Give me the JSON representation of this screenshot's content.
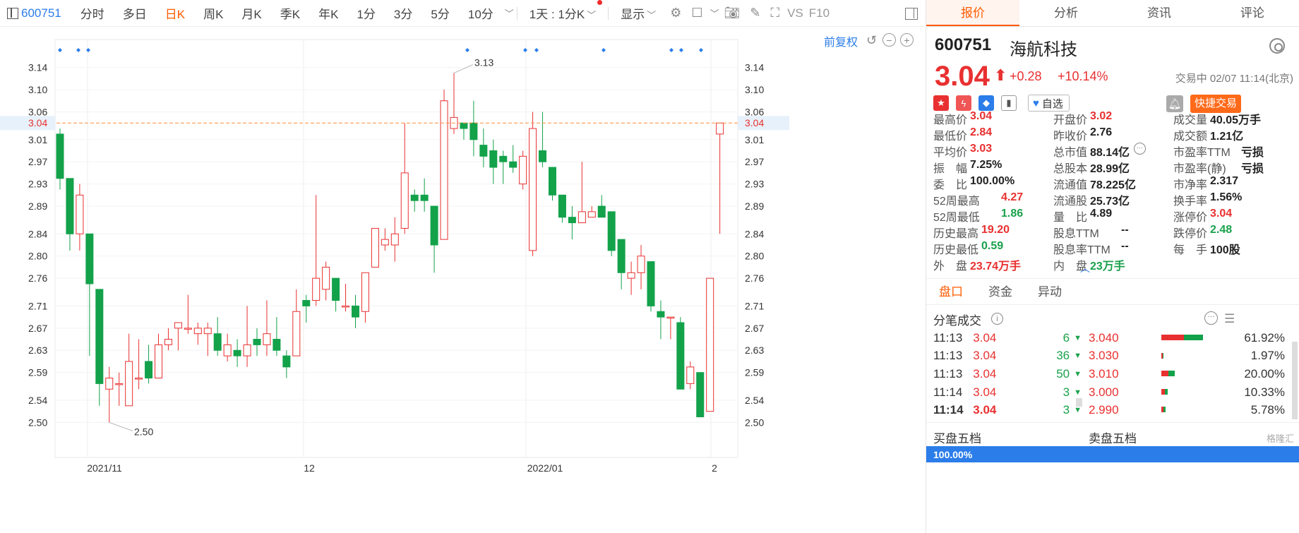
{
  "toolbar": {
    "code": "600751",
    "tabs": [
      "分时",
      "多日",
      "日K",
      "周K",
      "月K",
      "季K",
      "年K",
      "1分",
      "3分",
      "5分",
      "10分"
    ],
    "active": "日K",
    "range": "1天 : 1分K",
    "display": "显示",
    "vs": "VS",
    "f10": "F10"
  },
  "chart": {
    "restore_label": "前复权",
    "current_price_label": "3.04",
    "high_annotation": "3.13",
    "low_annotation": "2.50"
  },
  "chart_data": {
    "type": "candlestick",
    "y_ticks": [
      3.14,
      3.1,
      3.06,
      3.01,
      2.97,
      2.93,
      2.89,
      2.84,
      2.8,
      2.76,
      2.71,
      2.67,
      2.63,
      2.59,
      2.54,
      2.5
    ],
    "x_labels": [
      "2021/11",
      "12",
      "2022/01",
      "2"
    ],
    "current_price": 3.04,
    "candles": [
      {
        "o": 3.02,
        "h": 3.03,
        "l": 2.92,
        "c": 2.94
      },
      {
        "o": 2.94,
        "h": 2.94,
        "l": 2.81,
        "c": 2.84
      },
      {
        "o": 2.84,
        "h": 2.93,
        "l": 2.81,
        "c": 2.91
      },
      {
        "o": 2.84,
        "h": 2.84,
        "l": 2.62,
        "c": 2.75
      },
      {
        "o": 2.74,
        "h": 2.74,
        "l": 2.53,
        "c": 2.57
      },
      {
        "o": 2.56,
        "h": 2.6,
        "l": 2.5,
        "c": 2.58
      },
      {
        "o": 2.57,
        "h": 2.59,
        "l": 2.53,
        "c": 2.57
      },
      {
        "o": 2.53,
        "h": 2.66,
        "l": 2.53,
        "c": 2.61
      },
      {
        "o": 2.58,
        "h": 2.65,
        "l": 2.56,
        "c": 2.58
      },
      {
        "o": 2.61,
        "h": 2.64,
        "l": 2.57,
        "c": 2.58
      },
      {
        "o": 2.58,
        "h": 2.66,
        "l": 2.58,
        "c": 2.64
      },
      {
        "o": 2.64,
        "h": 2.67,
        "l": 2.63,
        "c": 2.65
      },
      {
        "o": 2.67,
        "h": 2.68,
        "l": 2.63,
        "c": 2.68
      },
      {
        "o": 2.67,
        "h": 2.73,
        "l": 2.66,
        "c": 2.67
      },
      {
        "o": 2.66,
        "h": 2.68,
        "l": 2.64,
        "c": 2.67
      },
      {
        "o": 2.66,
        "h": 2.68,
        "l": 2.62,
        "c": 2.67
      },
      {
        "o": 2.66,
        "h": 2.69,
        "l": 2.62,
        "c": 2.63
      },
      {
        "o": 2.62,
        "h": 2.66,
        "l": 2.61,
        "c": 2.64
      },
      {
        "o": 2.63,
        "h": 2.65,
        "l": 2.6,
        "c": 2.62
      },
      {
        "o": 2.62,
        "h": 2.71,
        "l": 2.6,
        "c": 2.64
      },
      {
        "o": 2.65,
        "h": 2.67,
        "l": 2.62,
        "c": 2.64
      },
      {
        "o": 2.64,
        "h": 2.72,
        "l": 2.62,
        "c": 2.66
      },
      {
        "o": 2.65,
        "h": 2.69,
        "l": 2.62,
        "c": 2.63
      },
      {
        "o": 2.62,
        "h": 2.63,
        "l": 2.58,
        "c": 2.6
      },
      {
        "o": 2.62,
        "h": 2.74,
        "l": 2.62,
        "c": 2.7
      },
      {
        "o": 2.72,
        "h": 2.73,
        "l": 2.68,
        "c": 2.71
      },
      {
        "o": 2.72,
        "h": 2.91,
        "l": 2.71,
        "c": 2.76
      },
      {
        "o": 2.74,
        "h": 2.79,
        "l": 2.72,
        "c": 2.78
      },
      {
        "o": 2.76,
        "h": 2.76,
        "l": 2.7,
        "c": 2.72
      },
      {
        "o": 2.71,
        "h": 2.75,
        "l": 2.7,
        "c": 2.71
      },
      {
        "o": 2.71,
        "h": 2.73,
        "l": 2.67,
        "c": 2.69
      },
      {
        "o": 2.7,
        "h": 2.77,
        "l": 2.68,
        "c": 2.77
      },
      {
        "o": 2.78,
        "h": 2.85,
        "l": 2.78,
        "c": 2.85
      },
      {
        "o": 2.82,
        "h": 2.85,
        "l": 2.81,
        "c": 2.83
      },
      {
        "o": 2.82,
        "h": 2.87,
        "l": 2.79,
        "c": 2.84
      },
      {
        "o": 2.85,
        "h": 3.04,
        "l": 2.84,
        "c": 2.95
      },
      {
        "o": 2.91,
        "h": 2.92,
        "l": 2.88,
        "c": 2.9
      },
      {
        "o": 2.91,
        "h": 2.94,
        "l": 2.88,
        "c": 2.9
      },
      {
        "o": 2.89,
        "h": 2.89,
        "l": 2.77,
        "c": 2.82
      },
      {
        "o": 2.83,
        "h": 3.1,
        "l": 2.83,
        "c": 3.08
      },
      {
        "o": 3.03,
        "h": 3.13,
        "l": 3.02,
        "c": 3.05
      },
      {
        "o": 3.04,
        "h": 3.04,
        "l": 3.01,
        "c": 3.03
      },
      {
        "o": 3.04,
        "h": 3.08,
        "l": 2.98,
        "c": 3.01
      },
      {
        "o": 3.0,
        "h": 3.03,
        "l": 2.96,
        "c": 2.98
      },
      {
        "o": 2.99,
        "h": 3.01,
        "l": 2.93,
        "c": 2.96
      },
      {
        "o": 2.98,
        "h": 2.99,
        "l": 2.93,
        "c": 2.97
      },
      {
        "o": 2.97,
        "h": 3.0,
        "l": 2.95,
        "c": 2.96
      },
      {
        "o": 2.93,
        "h": 2.99,
        "l": 2.92,
        "c": 2.98
      },
      {
        "o": 2.81,
        "h": 3.06,
        "l": 2.8,
        "c": 3.03
      },
      {
        "o": 2.99,
        "h": 3.06,
        "l": 2.96,
        "c": 2.97
      },
      {
        "o": 2.96,
        "h": 2.96,
        "l": 2.9,
        "c": 2.91
      },
      {
        "o": 2.91,
        "h": 2.91,
        "l": 2.86,
        "c": 2.87
      },
      {
        "o": 2.87,
        "h": 2.89,
        "l": 2.83,
        "c": 2.86
      },
      {
        "o": 2.86,
        "h": 2.97,
        "l": 2.86,
        "c": 2.88
      },
      {
        "o": 2.87,
        "h": 2.89,
        "l": 2.87,
        "c": 2.88
      },
      {
        "o": 2.89,
        "h": 2.91,
        "l": 2.87,
        "c": 2.87
      },
      {
        "o": 2.88,
        "h": 2.88,
        "l": 2.8,
        "c": 2.81
      },
      {
        "o": 2.83,
        "h": 2.83,
        "l": 2.74,
        "c": 2.77
      },
      {
        "o": 2.76,
        "h": 2.79,
        "l": 2.73,
        "c": 2.77
      },
      {
        "o": 2.77,
        "h": 2.82,
        "l": 2.74,
        "c": 2.8
      },
      {
        "o": 2.79,
        "h": 2.79,
        "l": 2.7,
        "c": 2.71
      },
      {
        "o": 2.7,
        "h": 2.72,
        "l": 2.65,
        "c": 2.69
      },
      {
        "o": 2.69,
        "h": 2.69,
        "l": 2.65,
        "c": 2.69
      },
      {
        "o": 2.68,
        "h": 2.69,
        "l": 2.56,
        "c": 2.56
      },
      {
        "o": 2.57,
        "h": 2.61,
        "l": 2.56,
        "c": 2.6
      },
      {
        "o": 2.59,
        "h": 2.59,
        "l": 2.51,
        "c": 2.51
      },
      {
        "o": 2.52,
        "h": 2.76,
        "l": 2.52,
        "c": 2.76
      },
      {
        "o": 3.02,
        "h": 3.04,
        "l": 2.84,
        "c": 3.04
      }
    ]
  },
  "panel": {
    "tabs": [
      "报价",
      "分析",
      "资讯",
      "评论"
    ],
    "active": "报价",
    "code": "600751",
    "name": "海航科技",
    "price": "3.04",
    "change": "+0.28",
    "change_pct": "+10.14%",
    "status": "交易中 02/07 11:14(北京)",
    "watch_label": "自选",
    "quick_trade": "快捷交易",
    "quotes": [
      [
        {
          "k": "最高价",
          "v": "3.04",
          "c": "red"
        },
        {
          "k": "开盘价",
          "v": "3.02",
          "c": "red"
        },
        {
          "k": "成交量",
          "v": "40.05万手",
          "c": ""
        }
      ],
      [
        {
          "k": "最低价",
          "v": "2.84",
          "c": "red"
        },
        {
          "k": "昨收价",
          "v": "2.76",
          "c": ""
        },
        {
          "k": "成交额",
          "v": "1.21亿",
          "c": ""
        }
      ],
      [
        {
          "k": "平均价",
          "v": "3.03",
          "c": "red"
        },
        {
          "k": "总市值",
          "v": "88.14亿",
          "c": ""
        },
        {
          "k": "市盈率TTM",
          "v": "亏损",
          "c": ""
        }
      ],
      [
        {
          "k": "振　幅",
          "v": "7.25%",
          "c": ""
        },
        {
          "k": "总股本",
          "v": "28.99亿",
          "c": ""
        },
        {
          "k": "市盈率(静)",
          "v": "亏损",
          "c": ""
        }
      ],
      [
        {
          "k": "委　比",
          "v": "100.00%",
          "c": ""
        },
        {
          "k": "流通值",
          "v": "78.225亿",
          "c": ""
        },
        {
          "k": "市净率",
          "v": "2.317",
          "c": ""
        }
      ],
      [
        {
          "k": "52周最高",
          "v": "4.27",
          "c": "red"
        },
        {
          "k": "流通股",
          "v": "25.73亿",
          "c": ""
        },
        {
          "k": "换手率",
          "v": "1.56%",
          "c": ""
        }
      ],
      [
        {
          "k": "52周最低",
          "v": "1.86",
          "c": "green"
        },
        {
          "k": "量　比",
          "v": "4.89",
          "c": ""
        },
        {
          "k": "涨停价",
          "v": "3.04",
          "c": "red"
        }
      ],
      [
        {
          "k": "历史最高",
          "v": "19.20",
          "c": "red"
        },
        {
          "k": "股息TTM",
          "v": "--",
          "c": ""
        },
        {
          "k": "跌停价",
          "v": "2.48",
          "c": "green"
        }
      ],
      [
        {
          "k": "历史最低",
          "v": "0.59",
          "c": "green"
        },
        {
          "k": "股息率TTM",
          "v": "--",
          "c": ""
        },
        {
          "k": "每　手",
          "v": "100股",
          "c": ""
        }
      ],
      [
        {
          "k": "外　盘",
          "v": "23.74万手",
          "c": "red"
        },
        {
          "k": "内　盘",
          "v": "23万手",
          "c": "green"
        },
        {
          "k": "",
          "v": "",
          "c": ""
        }
      ]
    ],
    "sub_tabs": [
      "盘口",
      "资金",
      "异动"
    ],
    "sub_active": "盘口",
    "tick_title": "分笔成交",
    "ticks": [
      {
        "time": "11:13",
        "price": "3.04",
        "vol": "6"
      },
      {
        "time": "11:13",
        "price": "3.04",
        "vol": "36"
      },
      {
        "time": "11:13",
        "price": "3.04",
        "vol": "50"
      },
      {
        "time": "11:14",
        "price": "3.04",
        "vol": "3"
      },
      {
        "time": "11:14",
        "price": "3.04",
        "vol": "3"
      }
    ],
    "dist": [
      {
        "price": "3.040",
        "pct": "61.92%",
        "frac": 0.62
      },
      {
        "price": "3.030",
        "pct": "1.97%",
        "frac": 0.02
      },
      {
        "price": "3.010",
        "pct": "20.00%",
        "frac": 0.2
      },
      {
        "price": "3.000",
        "pct": "10.33%",
        "frac": 0.1
      },
      {
        "price": "2.990",
        "pct": "5.78%",
        "frac": 0.06
      }
    ],
    "buy_book": "买盘五档",
    "sell_book": "卖盘五档",
    "book_ratio": "100.00%",
    "watermark": "格隆汇"
  },
  "colors": {
    "up": "#e93030",
    "down": "#13a24a",
    "accent": "#ff5a00",
    "blue": "#2b7de9"
  }
}
